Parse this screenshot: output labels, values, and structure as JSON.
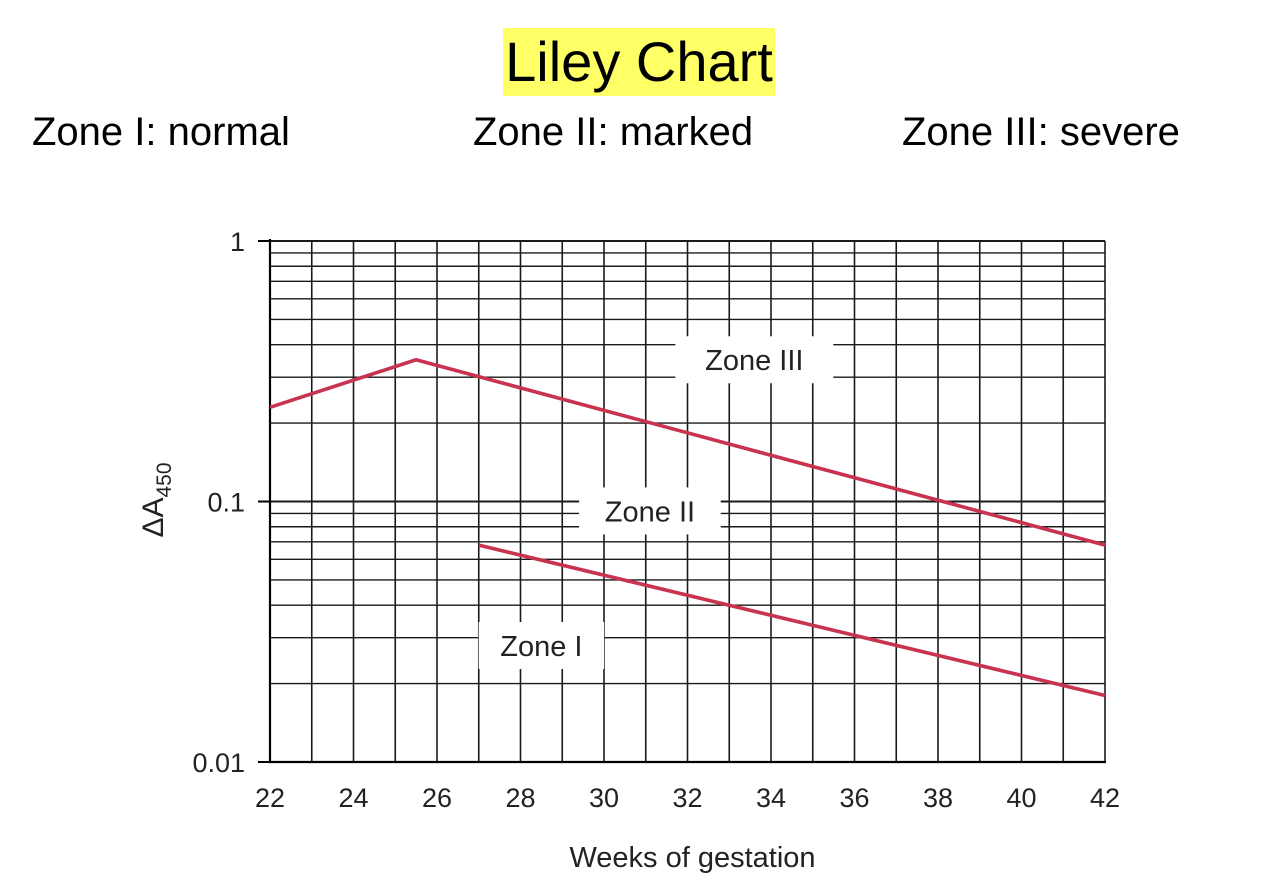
{
  "header": {
    "title": "Liley Chart",
    "title_highlight_color": "#ffff66",
    "zones": [
      "Zone I: normal",
      "Zone II: marked",
      "Zone III: severe"
    ]
  },
  "chart_data": {
    "type": "line",
    "xlabel": "Weeks of gestation",
    "ylabel_main": "ΔA",
    "ylabel_sub": "450",
    "x_scale": "linear",
    "y_scale": "log",
    "xlim": [
      22,
      42
    ],
    "ylim": [
      0.01,
      1
    ],
    "x_ticks": [
      22,
      24,
      26,
      28,
      30,
      32,
      34,
      36,
      38,
      40,
      42
    ],
    "y_ticks": [
      0.01,
      0.1,
      1
    ],
    "y_tick_labels": [
      "0.01",
      "0.1",
      "1"
    ],
    "grid": true,
    "line_color": "#c8334f",
    "series": [
      {
        "x": [
          22,
          25.5,
          42
        ],
        "y": [
          0.23,
          0.35,
          0.068
        ]
      },
      {
        "x": [
          27,
          42
        ],
        "y": [
          0.068,
          0.018
        ]
      }
    ],
    "annotations": [
      {
        "text": "Zone III",
        "x": 33.6,
        "y": 0.35
      },
      {
        "text": "Zone II",
        "x": 31.1,
        "y": 0.092
      },
      {
        "text": "Zone I",
        "x": 28.5,
        "y": 0.028
      }
    ]
  }
}
